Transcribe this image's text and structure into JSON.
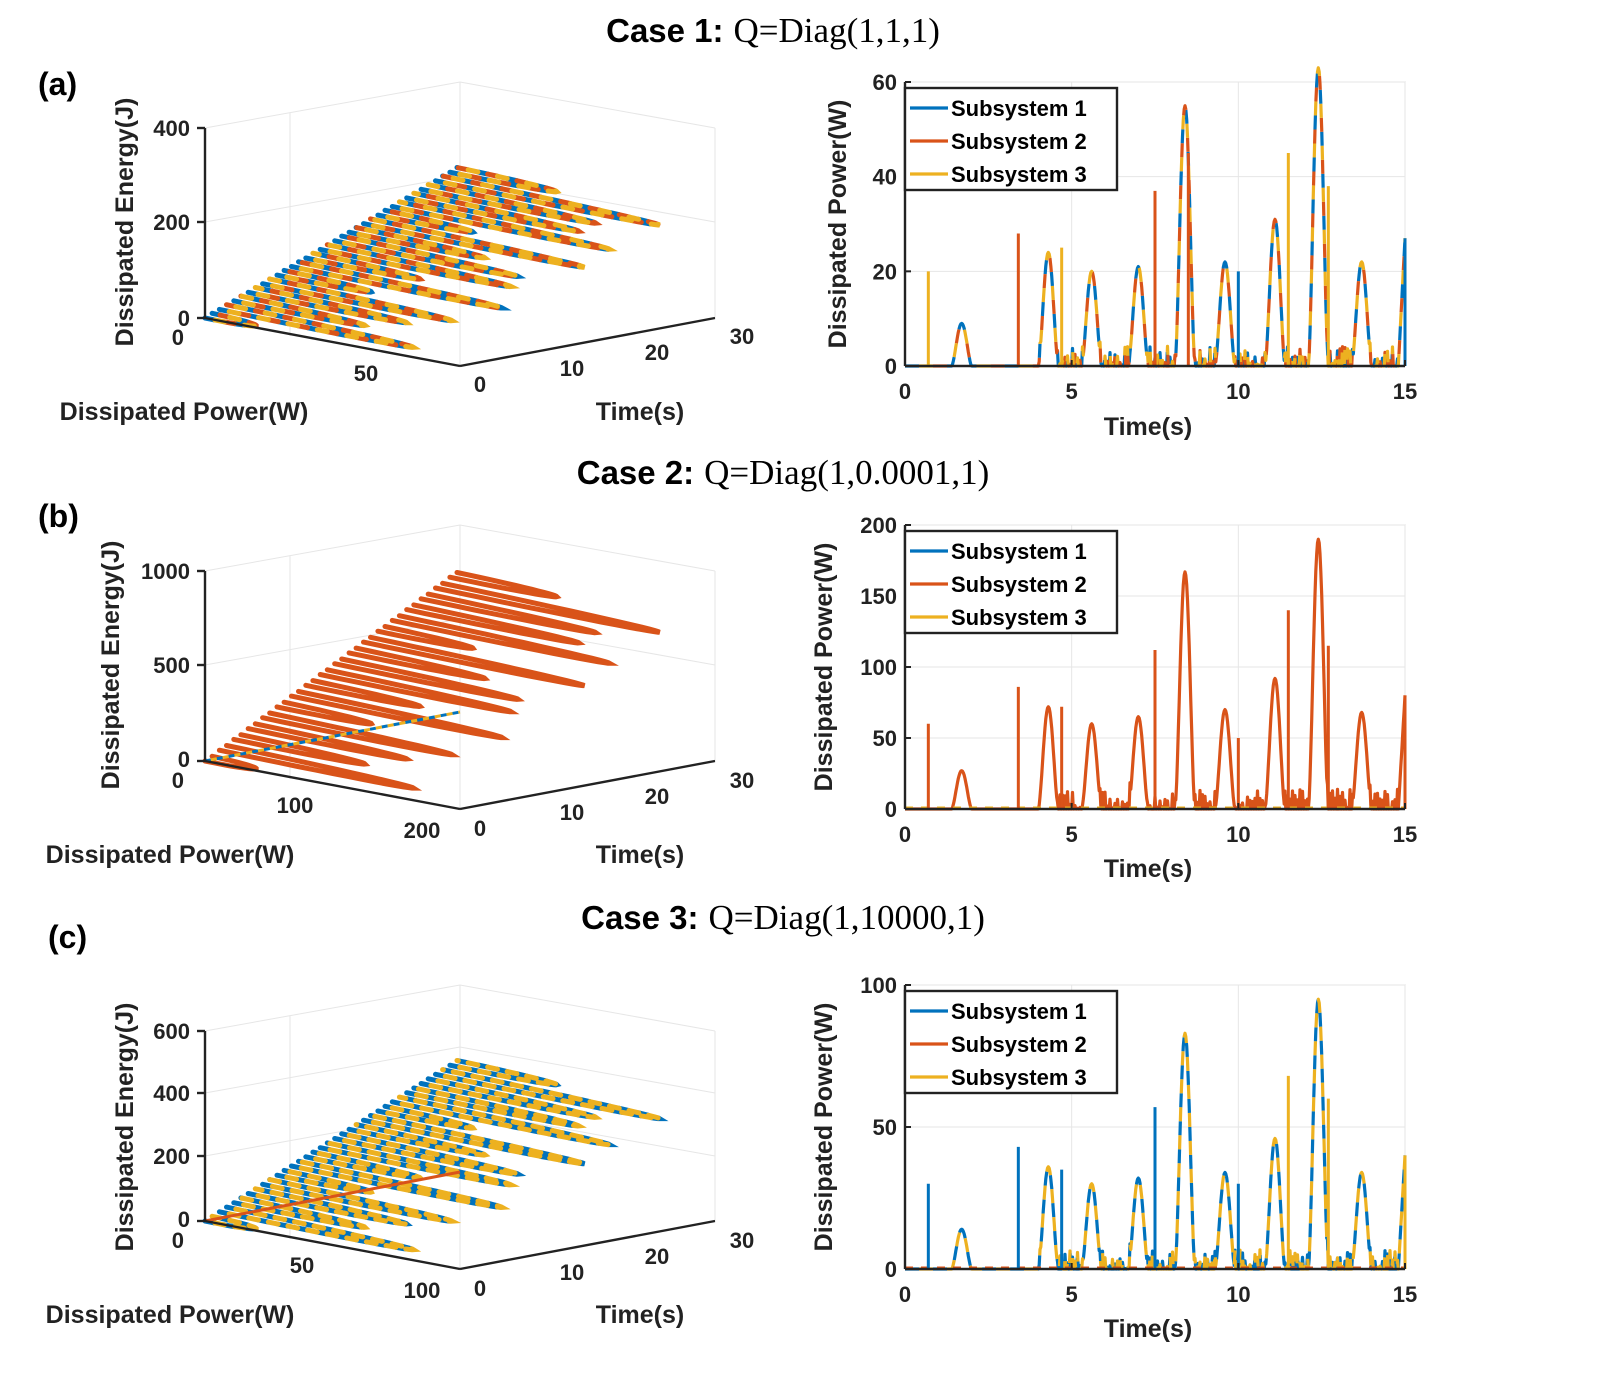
{
  "colors": {
    "subsystem1": "#0072BD",
    "subsystem2": "#D95319",
    "subsystem3": "#EDB120"
  },
  "cases": [
    {
      "panel": "(a)",
      "title_bold": "Case 1:",
      "title_expr": "Q=Diag(1,1,1)",
      "visible_series": [
        1,
        2,
        3
      ],
      "chart3d": {
        "type": "line3d",
        "zlabel": "Dissipated Energy(J)",
        "xlabel": "Dissipated Power(W)",
        "ylabel": "Time(s)",
        "zticks": [
          "0",
          "200",
          "400"
        ],
        "xticks": [
          "0",
          "50"
        ],
        "yticks": [
          "0",
          "10",
          "20",
          "30"
        ],
        "zlim": [
          0,
          400
        ],
        "xlim": [
          0,
          60
        ],
        "ylim": [
          0,
          30
        ],
        "loop_z_max": 390,
        "loop_x_max": 62
      },
      "chart_data": {
        "type": "line",
        "xlabel": "Time(s)",
        "ylabel": "Dissipated Power(W)",
        "xlim": [
          0,
          15
        ],
        "ylim": [
          0,
          60
        ],
        "xticks": [
          "0",
          "5",
          "10",
          "15"
        ],
        "yticks": [
          "0",
          "20",
          "40",
          "60"
        ],
        "legend": [
          "Subsystem 1",
          "Subsystem 2",
          "Subsystem 3"
        ],
        "legend_position": "top-left",
        "peaks": [
          [
            1.7,
            9
          ],
          [
            4.3,
            24
          ],
          [
            5.6,
            20
          ],
          [
            7.0,
            21
          ],
          [
            8.4,
            55
          ],
          [
            9.6,
            22
          ],
          [
            11.1,
            31
          ],
          [
            12.4,
            63
          ],
          [
            13.7,
            22
          ]
        ],
        "spikes": [
          [
            0.7,
            20
          ],
          [
            3.4,
            28
          ],
          [
            4.7,
            25
          ],
          [
            7.5,
            37
          ],
          [
            8.5,
            45
          ],
          [
            10.0,
            20
          ],
          [
            11.5,
            45
          ],
          [
            12.7,
            38
          ],
          [
            15.0,
            27
          ]
        ],
        "end_value": 27
      }
    },
    {
      "panel": "(b)",
      "title_bold": "Case 2:",
      "title_expr": "Q=Diag(1,0.0001,1)",
      "visible_series": [
        2
      ],
      "chart3d": {
        "type": "line3d",
        "zlabel": "Dissipated Energy(J)",
        "xlabel": "Dissipated Power(W)",
        "ylabel": "Time(s)",
        "zticks": [
          "0",
          "500",
          "1000"
        ],
        "xticks": [
          "100",
          "200"
        ],
        "yticks": [
          "0",
          "10",
          "20",
          "30"
        ],
        "zlim": [
          0,
          1200
        ],
        "xlim": [
          0,
          200
        ],
        "ylim": [
          0,
          30
        ],
        "loop_z_max": 1150,
        "loop_x_max": 190
      },
      "chart_data": {
        "type": "line",
        "xlabel": "Time(s)",
        "ylabel": "Dissipated Power(W)",
        "xlim": [
          0,
          15
        ],
        "ylim": [
          0,
          200
        ],
        "xticks": [
          "0",
          "5",
          "10",
          "15"
        ],
        "yticks": [
          "0",
          "50",
          "100",
          "150",
          "200"
        ],
        "legend": [
          "Subsystem 1",
          "Subsystem 2",
          "Subsystem 3"
        ],
        "legend_position": "top-left",
        "peaks": [
          [
            1.7,
            27
          ],
          [
            4.3,
            72
          ],
          [
            5.6,
            60
          ],
          [
            7.0,
            65
          ],
          [
            8.4,
            167
          ],
          [
            9.6,
            70
          ],
          [
            11.1,
            92
          ],
          [
            12.4,
            190
          ],
          [
            13.7,
            68
          ]
        ],
        "spikes": [
          [
            0.7,
            60
          ],
          [
            3.4,
            86
          ],
          [
            4.7,
            72
          ],
          [
            7.5,
            112
          ],
          [
            10.0,
            50
          ],
          [
            11.5,
            140
          ],
          [
            12.7,
            115
          ],
          [
            15.0,
            80
          ]
        ],
        "end_value": 80
      }
    },
    {
      "panel": "(c)",
      "title_bold": "Case 3:",
      "title_expr": "Q=Diag(1,10000,1)",
      "visible_series": [
        1,
        3
      ],
      "chart3d": {
        "type": "line3d",
        "zlabel": "Dissipated Energy(J)",
        "xlabel": "Dissipated Power(W)",
        "ylabel": "Time(s)",
        "zticks": [
          "0",
          "200",
          "400",
          "600"
        ],
        "xticks": [
          "0",
          "50",
          "100"
        ],
        "yticks": [
          "0",
          "10",
          "20",
          "30"
        ],
        "zlim": [
          0,
          650
        ],
        "xlim": [
          0,
          100
        ],
        "ylim": [
          0,
          30
        ],
        "loop_z_max": 620,
        "loop_x_max": 95
      },
      "chart_data": {
        "type": "line",
        "xlabel": "Time(s)",
        "ylabel": "Dissipated Power(W)",
        "xlim": [
          0,
          15
        ],
        "ylim": [
          0,
          100
        ],
        "xticks": [
          "0",
          "5",
          "10",
          "15"
        ],
        "yticks": [
          "0",
          "50",
          "100"
        ],
        "legend": [
          "Subsystem 1",
          "Subsystem 2",
          "Subsystem 3"
        ],
        "legend_position": "top-left",
        "peaks": [
          [
            1.7,
            14
          ],
          [
            4.3,
            36
          ],
          [
            5.6,
            30
          ],
          [
            7.0,
            32
          ],
          [
            8.4,
            83
          ],
          [
            9.6,
            34
          ],
          [
            11.1,
            46
          ],
          [
            12.4,
            95
          ],
          [
            13.7,
            34
          ]
        ],
        "spikes": [
          [
            0.7,
            30
          ],
          [
            3.4,
            43
          ],
          [
            4.7,
            35
          ],
          [
            7.5,
            57
          ],
          [
            10.0,
            30
          ],
          [
            11.5,
            68
          ],
          [
            12.7,
            60
          ],
          [
            15.0,
            40
          ]
        ],
        "end_value": 40
      }
    }
  ]
}
